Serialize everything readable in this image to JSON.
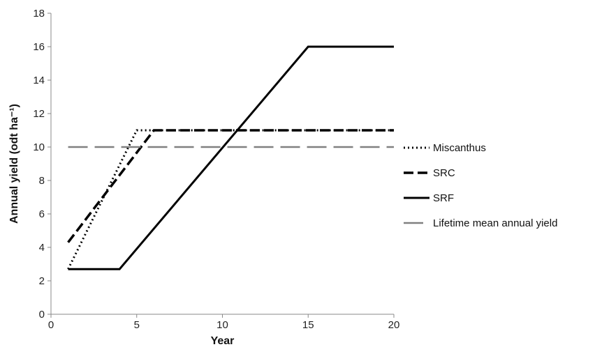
{
  "chart_data": {
    "type": "line",
    "xlabel": "Year",
    "ylabel": "Annual yield (odt ha⁻¹)",
    "xlim": [
      0,
      20
    ],
    "ylim": [
      0,
      18
    ],
    "xticks": [
      0,
      5,
      10,
      15,
      20
    ],
    "yticks": [
      0,
      2,
      4,
      6,
      8,
      10,
      12,
      14,
      16,
      18
    ],
    "grid": false,
    "legend_position": "right",
    "series": [
      {
        "name": "Miscanthus",
        "style": "dotted",
        "color": "#000000",
        "x": [
          1,
          5,
          20
        ],
        "y": [
          2.7,
          11,
          11
        ]
      },
      {
        "name": "SRC",
        "style": "dashed",
        "color": "#000000",
        "x": [
          1,
          6,
          20
        ],
        "y": [
          4.3,
          11,
          11
        ]
      },
      {
        "name": "SRF",
        "style": "solid",
        "color": "#000000",
        "x": [
          1,
          4,
          15,
          20
        ],
        "y": [
          2.7,
          2.7,
          16,
          16
        ]
      },
      {
        "name": "Lifetime mean annual yield",
        "style": "longdash",
        "color": "#808080",
        "x": [
          1,
          20
        ],
        "y": [
          10,
          10
        ]
      }
    ]
  }
}
